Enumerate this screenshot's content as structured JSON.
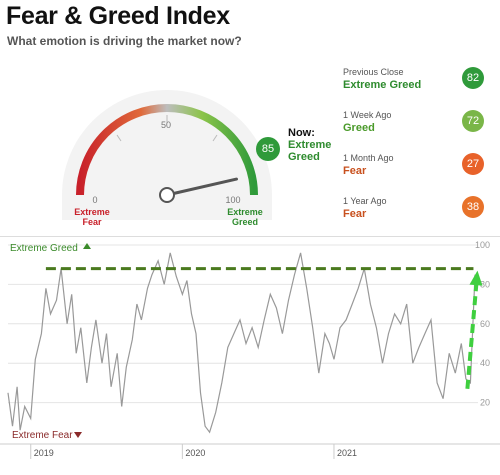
{
  "header": {
    "title": "Fear & Greed Index",
    "subtitle": "What emotion is driving the market now?"
  },
  "gauge": {
    "value": 85,
    "min": 0,
    "max": 100,
    "tick_labels": [
      "0",
      "50",
      "100"
    ],
    "left_label_line1": "Extreme",
    "left_label_line2": "Fear",
    "right_label_line1": "Extreme",
    "right_label_line2": "Greed",
    "now_label": "Now:",
    "now_value_line1": "Extreme",
    "now_value_line2": "Greed",
    "badge_value": "85"
  },
  "comparisons": [
    {
      "label": "Previous Close",
      "value_text": "Extreme Greed",
      "value": "82",
      "color": "#2f9a3a",
      "text_color": "#2e8b2e"
    },
    {
      "label": "1 Week Ago",
      "value_text": "Greed",
      "value": "72",
      "color": "#7ab648",
      "text_color": "#4a9a2a"
    },
    {
      "label": "1 Month Ago",
      "value_text": "Fear",
      "value": "27",
      "color": "#e8622a",
      "text_color": "#c8501e"
    },
    {
      "label": "1 Year Ago",
      "value_text": "Fear",
      "value": "38",
      "color": "#e8722a",
      "text_color": "#c8501e"
    }
  ],
  "chart_data": {
    "type": "line",
    "title": "",
    "top_label": "Extreme Greed",
    "bottom_label": "Extreme Fear",
    "x_tick_labels": [
      "2019",
      "2020",
      "2021"
    ],
    "y_ticks": [
      20,
      40,
      60,
      80,
      100
    ],
    "ylim": [
      0,
      100
    ],
    "xlim": [
      2018.85,
      2021.95
    ],
    "series": [
      {
        "x": [
          2018.85,
          2018.88,
          2018.91,
          2018.93,
          2018.96,
          2019.0,
          2019.03,
          2019.07,
          2019.1,
          2019.13,
          2019.17,
          2019.2,
          2019.24,
          2019.27,
          2019.3,
          2019.33,
          2019.37,
          2019.4,
          2019.43,
          2019.47,
          2019.5,
          2019.53,
          2019.57,
          2019.6,
          2019.63,
          2019.67,
          2019.7,
          2019.73,
          2019.77,
          2019.8,
          2019.84,
          2019.88,
          2019.92,
          2019.96,
          2020.0,
          2020.03,
          2020.06,
          2020.09,
          2020.12,
          2020.15,
          2020.18,
          2020.22,
          2020.26,
          2020.3,
          2020.34,
          2020.38,
          2020.42,
          2020.46,
          2020.5,
          2020.54,
          2020.58,
          2020.62,
          2020.66,
          2020.7,
          2020.74,
          2020.78,
          2020.82,
          2020.86,
          2020.9,
          2020.94,
          2020.97,
          2021.0,
          2021.04,
          2021.08,
          2021.12,
          2021.16,
          2021.2,
          2021.24,
          2021.28,
          2021.32,
          2021.36,
          2021.4,
          2021.44,
          2021.48,
          2021.52,
          2021.56,
          2021.6,
          2021.64,
          2021.68,
          2021.72,
          2021.76,
          2021.8,
          2021.84,
          2021.87,
          2021.9,
          2021.93
        ],
        "values": [
          25,
          8,
          28,
          6,
          18,
          12,
          42,
          55,
          78,
          65,
          72,
          88,
          60,
          75,
          45,
          58,
          30,
          48,
          62,
          40,
          55,
          28,
          45,
          18,
          38,
          52,
          70,
          62,
          78,
          85,
          92,
          80,
          96,
          84,
          75,
          82,
          65,
          55,
          25,
          8,
          5,
          15,
          30,
          48,
          55,
          62,
          50,
          58,
          48,
          62,
          75,
          68,
          55,
          72,
          85,
          96,
          78,
          58,
          35,
          55,
          50,
          42,
          58,
          62,
          70,
          78,
          88,
          70,
          58,
          40,
          55,
          65,
          60,
          70,
          40,
          48,
          55,
          62,
          30,
          22,
          45,
          35,
          50,
          32,
          30,
          85
        ],
        "color": "#999999"
      }
    ],
    "annotations": {
      "dashed_level": 88,
      "dashed_color": "#4a7a1e",
      "arrow_from_value": 27,
      "arrow_to_value": 86,
      "arrow_color": "#3fcf3f"
    }
  }
}
